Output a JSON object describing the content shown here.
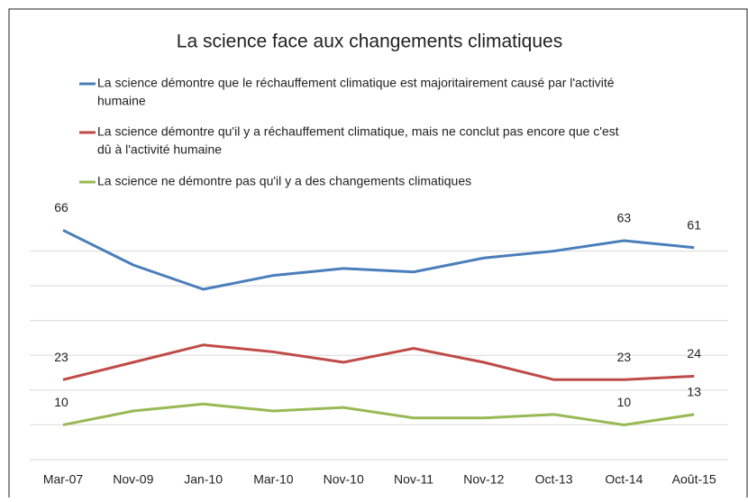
{
  "chart_data": {
    "type": "line",
    "title": "La science face aux changements climatiques",
    "categories": [
      "Mar-07",
      "Nov-09",
      "Jan-10",
      "Mar-10",
      "Nov-10",
      "Nov-11",
      "Nov-12",
      "Oct-13",
      "Oct-14",
      "Août-15"
    ],
    "series": [
      {
        "name": [
          "La science démontre que le réchauffement climatique est majoritairement causé par l'activité",
          "humaine"
        ],
        "color": "#4a7ebb",
        "values": [
          66,
          56,
          49,
          53,
          55,
          54,
          58,
          60,
          63,
          61
        ],
        "value_labels": [
          "66",
          null,
          null,
          null,
          null,
          null,
          null,
          null,
          "63",
          "61"
        ]
      },
      {
        "name": [
          "La science démontre qu'il y a réchauffement climatique, mais ne conclut pas encore que c'est",
          "dû à l'activité humaine"
        ],
        "color": "#be4b48",
        "values": [
          23,
          28,
          33,
          31,
          28,
          32,
          28,
          23,
          23,
          24
        ],
        "value_labels": [
          "23",
          null,
          null,
          null,
          null,
          null,
          null,
          null,
          "23",
          "24"
        ]
      },
      {
        "name": [
          "La science ne démontre pas qu'il y a des changements climatiques"
        ],
        "color": "#98b954",
        "values": [
          10,
          14,
          16,
          14,
          15,
          12,
          12,
          13,
          10,
          13
        ],
        "value_labels": [
          "10",
          null,
          null,
          null,
          null,
          null,
          null,
          null,
          "10",
          "13"
        ]
      }
    ],
    "ylim": [
      0,
      70
    ],
    "yticks": [
      0,
      10,
      20,
      30,
      40,
      50,
      60
    ],
    "grid": true
  }
}
